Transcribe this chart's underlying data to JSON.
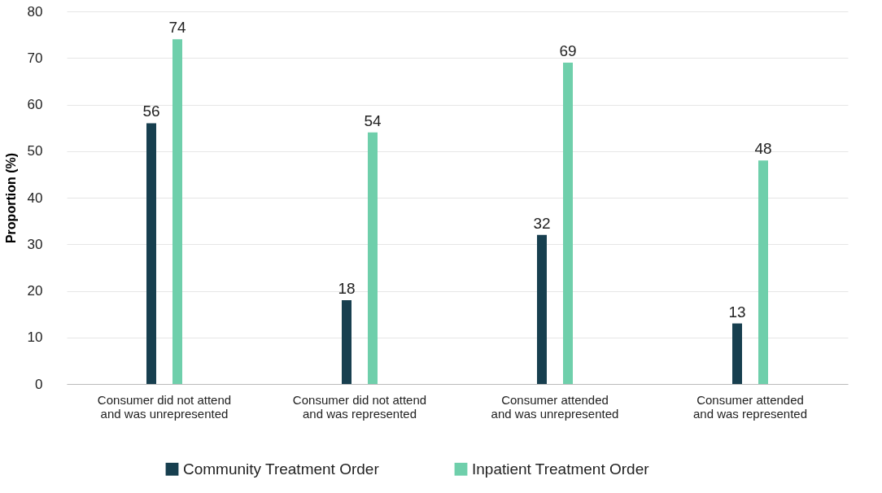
{
  "chart_data": {
    "type": "bar",
    "ylabel": "Proportion (%)",
    "categories": [
      "Consumer did not attend and was unrepresented",
      "Consumer did not attend and was represented",
      "Consumer attended and was unrepresented",
      "Consumer attended and was represented"
    ],
    "series": [
      {
        "name": "Community Treatment Order",
        "color": "#173f4f",
        "values": [
          56,
          18,
          32,
          13
        ]
      },
      {
        "name": "Inpatient Treatment Order",
        "color": "#6fcfab",
        "values": [
          74,
          54,
          69,
          48
        ]
      }
    ],
    "ylim": [
      0,
      80
    ],
    "yticks": [
      0,
      10,
      20,
      30,
      40,
      50,
      60,
      70,
      80
    ],
    "grid": "y",
    "legend": "bottom",
    "data_labels": true
  }
}
